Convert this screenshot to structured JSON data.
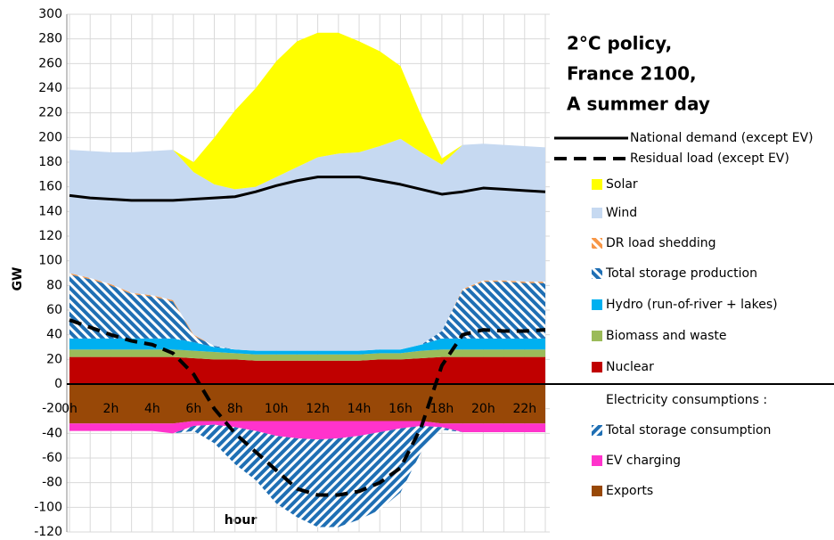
{
  "chart_data": {
    "type": "area",
    "title": [
      "2°C policy,",
      "France 2100,",
      "A summer day"
    ],
    "y_label": "GW",
    "x_label": "hour",
    "legend_note": "Electricity consumptions :",
    "categories": [
      "0h",
      null,
      "2h",
      null,
      "4h",
      null,
      "6h",
      null,
      "8h",
      null,
      "10h",
      null,
      "12h",
      null,
      "14h",
      null,
      "16h",
      null,
      "18h",
      null,
      "20h",
      null,
      "22h",
      null
    ],
    "ylim": [
      -120,
      300
    ],
    "yticks": [
      -120,
      -100,
      -80,
      -60,
      -40,
      -20,
      0,
      20,
      40,
      60,
      80,
      100,
      120,
      140,
      160,
      180,
      200,
      220,
      240,
      260,
      280,
      300
    ],
    "grid": true,
    "series": [
      {
        "name": "National demand (except EV)",
        "type": "line",
        "color": "#000000",
        "dash": false,
        "values": [
          153,
          151,
          150,
          149,
          149,
          149,
          150,
          151,
          152,
          156,
          161,
          165,
          168,
          168,
          168,
          165,
          162,
          158,
          154,
          156,
          159,
          158,
          157,
          156
        ]
      },
      {
        "name": "Residual load (except EV)",
        "type": "line",
        "color": "#000000",
        "dash": true,
        "values": [
          52,
          46,
          40,
          35,
          32,
          25,
          8,
          -20,
          -40,
          -55,
          -70,
          -85,
          -90,
          -90,
          -87,
          -80,
          -68,
          -35,
          15,
          40,
          44,
          43,
          43,
          44
        ]
      },
      {
        "name": "Solar",
        "type": "area",
        "color": "#ffff00",
        "values": [
          0,
          0,
          0,
          0,
          0,
          0,
          8,
          38,
          64,
          80,
          94,
          102,
          101,
          98,
          90,
          77,
          59,
          30,
          5,
          0,
          0,
          0,
          0,
          0
        ]
      },
      {
        "name": "Wind",
        "type": "area",
        "color": "#c6d9f1",
        "values": [
          100,
          103,
          107,
          114,
          117,
          122,
          132,
          131,
          130,
          133,
          141,
          149,
          157,
          160,
          161,
          165,
          171,
          156,
          135,
          117,
          111,
          110,
          110,
          109
        ]
      },
      {
        "name": "DR load shedding",
        "type": "area",
        "color": "#f79646",
        "hatch": "down",
        "values": [
          1,
          1,
          1,
          1,
          1,
          1,
          1,
          0,
          0,
          0,
          0,
          0,
          0,
          0,
          0,
          0,
          0,
          0,
          0,
          1,
          1,
          1,
          1,
          1
        ]
      },
      {
        "name": "Total storage production",
        "type": "area",
        "color": "#1f6fb4",
        "hatch": "down",
        "values": [
          52,
          48,
          43,
          36,
          34,
          30,
          5,
          1,
          0,
          0,
          0,
          0,
          0,
          0,
          0,
          0,
          0,
          0,
          6,
          39,
          46,
          46,
          45,
          45
        ]
      },
      {
        "name": "Hydro (run-of-river + lakes)",
        "type": "area",
        "color": "#00b0f0",
        "values": [
          9,
          9,
          9,
          9,
          9,
          9,
          7,
          4,
          3,
          3,
          3,
          3,
          3,
          3,
          3,
          3,
          3,
          5,
          9,
          9,
          9,
          9,
          9,
          9
        ]
      },
      {
        "name": "Biomass and waste",
        "type": "area",
        "color": "#9bbb59",
        "values": [
          6,
          6,
          6,
          6,
          6,
          6,
          6,
          6,
          5,
          5,
          5,
          5,
          5,
          5,
          5,
          5,
          5,
          6,
          6,
          6,
          6,
          6,
          6,
          6
        ]
      },
      {
        "name": "Nuclear",
        "type": "area",
        "color": "#c00000",
        "values": [
          22,
          22,
          22,
          22,
          22,
          22,
          21,
          20,
          20,
          19,
          19,
          19,
          19,
          19,
          19,
          20,
          20,
          21,
          22,
          22,
          22,
          22,
          22,
          22
        ]
      },
      {
        "name": "Total storage consumption",
        "type": "area",
        "color": "#1f6fb4",
        "hatch": "up",
        "values": [
          0,
          0,
          0,
          0,
          0,
          0,
          -4,
          -15,
          -30,
          -40,
          -55,
          -64,
          -71,
          -72,
          -68,
          -63,
          -52,
          -21,
          -2,
          0,
          0,
          0,
          0,
          0
        ]
      },
      {
        "name": "EV charging",
        "type": "area",
        "color": "#ff33cc",
        "values": [
          -6,
          -6,
          -6,
          -6,
          -6,
          -8,
          -4,
          -3,
          -5,
          -8,
          -12,
          -14,
          -15,
          -14,
          -12,
          -9,
          -6,
          -4,
          -3,
          -7,
          -7,
          -7,
          -7,
          -7
        ]
      },
      {
        "name": "Exports",
        "type": "area",
        "color": "#984807",
        "values": [
          -32,
          -32,
          -32,
          -32,
          -32,
          -32,
          -30,
          -30,
          -30,
          -30,
          -30,
          -30,
          -30,
          -30,
          -30,
          -30,
          -30,
          -30,
          -32,
          -32,
          -32,
          -32,
          -32,
          -32
        ]
      }
    ]
  }
}
